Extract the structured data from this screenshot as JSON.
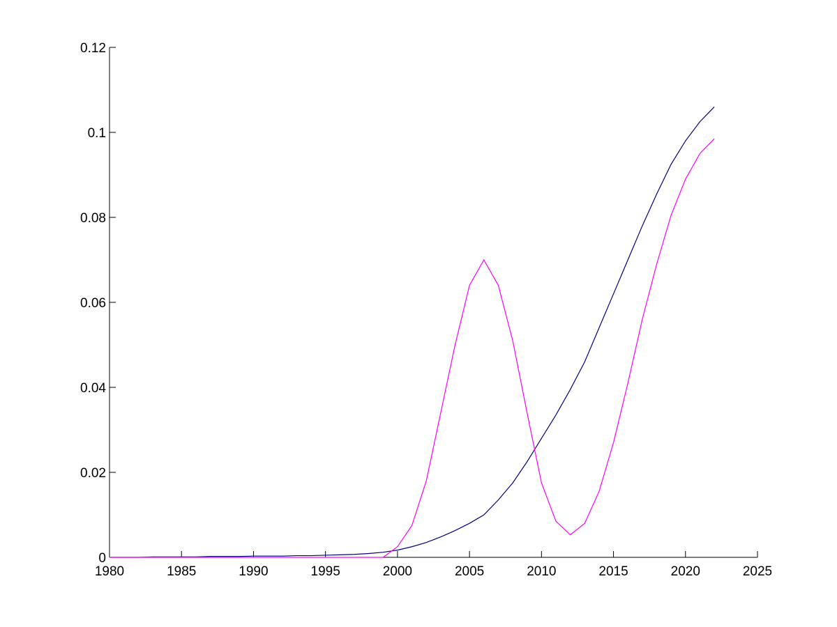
{
  "chart_data": {
    "type": "line",
    "x": [
      1980,
      1981,
      1982,
      1983,
      1984,
      1985,
      1986,
      1987,
      1988,
      1989,
      1990,
      1991,
      1992,
      1993,
      1994,
      1995,
      1996,
      1997,
      1998,
      1999,
      2000,
      2001,
      2002,
      2003,
      2004,
      2005,
      2006,
      2007,
      2008,
      2009,
      2010,
      2011,
      2012,
      2013,
      2014,
      2015,
      2016,
      2017,
      2018,
      2019,
      2020,
      2021,
      2022
    ],
    "series": [
      {
        "color": "#000080",
        "values": [
          0,
          0,
          0,
          0.0001,
          0.0001,
          0.0001,
          0.0001,
          0.0002,
          0.0002,
          0.0002,
          0.0003,
          0.0003,
          0.0003,
          0.0004,
          0.0004,
          0.0005,
          0.0006,
          0.0007,
          0.0009,
          0.0012,
          0.0017,
          0.0025,
          0.0035,
          0.0048,
          0.0063,
          0.008,
          0.01,
          0.0135,
          0.0175,
          0.0225,
          0.028,
          0.0335,
          0.0395,
          0.046,
          0.054,
          0.062,
          0.07,
          0.078,
          0.0855,
          0.0925,
          0.098,
          0.1025,
          0.106
        ]
      },
      {
        "color": "#ff00ff",
        "values": [
          0,
          0,
          0,
          0,
          0,
          0,
          0,
          0,
          0,
          0,
          0,
          0,
          0,
          0,
          0,
          0,
          0,
          0,
          0,
          0,
          0.0025,
          0.0075,
          0.018,
          0.034,
          0.05,
          0.064,
          0.07,
          0.064,
          0.051,
          0.034,
          0.0175,
          0.0085,
          0.0053,
          0.008,
          0.0155,
          0.027,
          0.041,
          0.056,
          0.069,
          0.0805,
          0.089,
          0.095,
          0.0985
        ]
      }
    ],
    "xlim": [
      1980,
      2025
    ],
    "xticks": [
      1980,
      1985,
      1990,
      1995,
      2000,
      2005,
      2010,
      2015,
      2020,
      2025
    ],
    "ylim": [
      0,
      0.12
    ],
    "yticks": [
      0,
      0.02,
      0.04,
      0.06,
      0.08,
      0.1,
      0.12
    ]
  }
}
